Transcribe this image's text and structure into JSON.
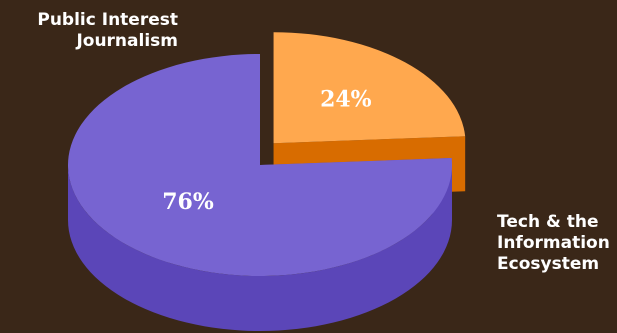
{
  "chart_data": {
    "type": "pie",
    "style": "3d-exploded",
    "slices": [
      {
        "label": "Public Interest\nJournalism",
        "value": 24,
        "value_label": "24%",
        "color_top": "#ffa84e",
        "color_side": "#d86c00"
      },
      {
        "label": "Tech & the\nInformation\nEcosystem",
        "value": 76,
        "value_label": "76%",
        "color_top": "#7764d1",
        "color_side": "#5b46b8"
      }
    ]
  },
  "colors": {
    "background": "#3a2718",
    "label_text": "#ffffff"
  }
}
